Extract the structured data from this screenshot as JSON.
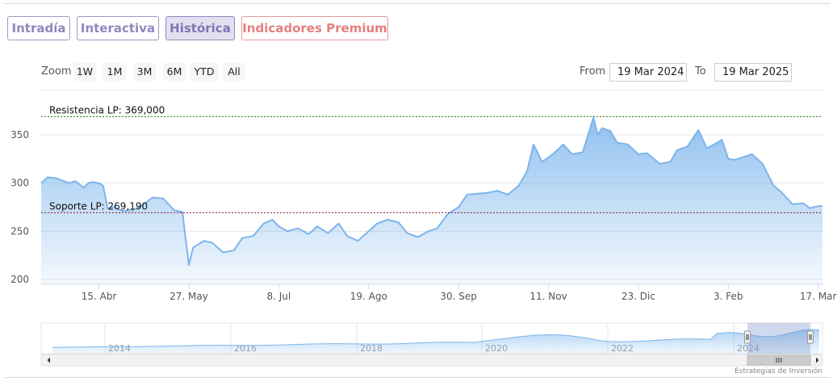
{
  "tabs": [
    {
      "label": "Intradía",
      "state": "normal"
    },
    {
      "label": "Interactiva",
      "state": "normal"
    },
    {
      "label": "Histórica",
      "state": "active"
    },
    {
      "label": "Indicadores Premium",
      "state": "premium"
    }
  ],
  "zoom": {
    "label": "Zoom",
    "buttons": [
      "1W",
      "1M",
      "3M",
      "6M",
      "YTD",
      "All"
    ]
  },
  "range": {
    "from_label": "From",
    "from_value": "19 Mar 2024",
    "to_label": "To",
    "to_value": "19 Mar 2025"
  },
  "credit": "Estrategias de Inversión",
  "colors": {
    "line": "#7cb5ec",
    "area_top": "#7cb5ec",
    "resistance_line": "#1a7a1a",
    "support_line": "#8b1a2b",
    "tab_border": "#9f98c9",
    "premium": "#e38080"
  },
  "chart_data": {
    "type": "area",
    "title": "",
    "xlabel": "",
    "ylabel": "",
    "ylim": [
      195,
      370
    ],
    "yticks": [
      200,
      250,
      300,
      350
    ],
    "xlim": [
      "2024-03-19",
      "2025-03-19"
    ],
    "xticks": [
      {
        "label": "15. Abr",
        "date": "2024-04-15"
      },
      {
        "label": "27. May",
        "date": "2024-05-27"
      },
      {
        "label": "8. Jul",
        "date": "2024-07-08"
      },
      {
        "label": "19. Ago",
        "date": "2024-08-19"
      },
      {
        "label": "30. Sep",
        "date": "2024-09-30"
      },
      {
        "label": "11. Nov",
        "date": "2024-11-11"
      },
      {
        "label": "23. Dic",
        "date": "2024-12-23"
      },
      {
        "label": "3. Feb",
        "date": "2025-02-03"
      },
      {
        "label": "17. Mar",
        "date": "2025-03-17"
      }
    ],
    "grid": true,
    "reference_lines": [
      {
        "label": "Resistencia LP: 369,000",
        "value": 369.0,
        "style": "dashed",
        "color": "#1a7a1a"
      },
      {
        "label": "Soporte LP: 269,190",
        "value": 269.19,
        "style": "dashed",
        "color": "#8b1a2b"
      }
    ],
    "series": [
      {
        "x": [
          "2024-03-19",
          "2024-03-22",
          "2024-03-26",
          "2024-04-01",
          "2024-04-04",
          "2024-04-08",
          "2024-04-10",
          "2024-04-12",
          "2024-04-15",
          "2024-04-17",
          "2024-04-19",
          "2024-04-22",
          "2024-04-26",
          "2024-05-01",
          "2024-05-06",
          "2024-05-10",
          "2024-05-15",
          "2024-05-20",
          "2024-05-24",
          "2024-05-27",
          "2024-05-29",
          "2024-06-03",
          "2024-06-07",
          "2024-06-12",
          "2024-06-17",
          "2024-06-21",
          "2024-06-26",
          "2024-07-01",
          "2024-07-05",
          "2024-07-08",
          "2024-07-12",
          "2024-07-17",
          "2024-07-22",
          "2024-07-26",
          "2024-07-31",
          "2024-08-05",
          "2024-08-09",
          "2024-08-14",
          "2024-08-19",
          "2024-08-23",
          "2024-08-28",
          "2024-09-02",
          "2024-09-06",
          "2024-09-11",
          "2024-09-16",
          "2024-09-20",
          "2024-09-25",
          "2024-09-30",
          "2024-10-04",
          "2024-10-09",
          "2024-10-14",
          "2024-10-18",
          "2024-10-23",
          "2024-10-28",
          "2024-11-01",
          "2024-11-04",
          "2024-11-08",
          "2024-11-13",
          "2024-11-18",
          "2024-11-22",
          "2024-11-27",
          "2024-12-02",
          "2024-12-04",
          "2024-12-06",
          "2024-12-10",
          "2024-12-13",
          "2024-12-18",
          "2024-12-23",
          "2024-12-27",
          "2025-01-02",
          "2025-01-07",
          "2025-01-10",
          "2025-01-15",
          "2025-01-20",
          "2025-01-24",
          "2025-01-29",
          "2025-01-31",
          "2025-02-03",
          "2025-02-06",
          "2025-02-10",
          "2025-02-14",
          "2025-02-19",
          "2025-02-24",
          "2025-02-28",
          "2025-03-05",
          "2025-03-10",
          "2025-03-13",
          "2025-03-17",
          "2025-03-19"
        ],
        "values": [
          300,
          306,
          305,
          300,
          302,
          295,
          300,
          301,
          300,
          297,
          274,
          275,
          271,
          272,
          278,
          285,
          284,
          272,
          270,
          215,
          233,
          240,
          238,
          228,
          230,
          243,
          245,
          258,
          262,
          255,
          250,
          253,
          247,
          255,
          248,
          258,
          245,
          240,
          250,
          258,
          262,
          259,
          248,
          244,
          250,
          253,
          268,
          275,
          288,
          289,
          290,
          292,
          288,
          297,
          312,
          340,
          322,
          330,
          340,
          330,
          332,
          368,
          350,
          357,
          354,
          342,
          340,
          330,
          331,
          320,
          322,
          334,
          338,
          355,
          336,
          342,
          345,
          325,
          324,
          327,
          330,
          320,
          298,
          290,
          278,
          279,
          274,
          276,
          276
        ]
      }
    ]
  },
  "navigator": {
    "years": [
      "2014",
      "2016",
      "2018",
      "2020",
      "2022",
      "2024"
    ]
  }
}
